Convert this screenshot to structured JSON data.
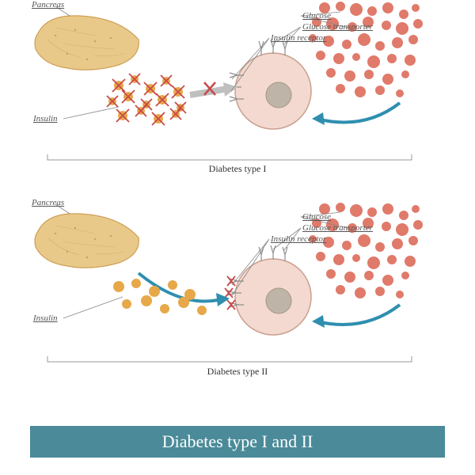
{
  "title": "Diabetes type I and II",
  "title_bar_color": "#4a8a99",
  "panels": [
    {
      "caption": "Diabetes type I",
      "labels": {
        "pancreas": "Pancreas",
        "insulin": "Insulin",
        "glucose": "Glucose",
        "glucose_transporter": "Glucose transporter",
        "insulin_receptor": "Insulin receptor"
      },
      "insulin_crossed": true,
      "receptor_crossed": false,
      "arrow_color": "#bfbfbf",
      "arrow_x": true
    },
    {
      "caption": "Diabetes type II",
      "labels": {
        "pancreas": "Pancreas",
        "insulin": "Insulin",
        "glucose": "Glucose",
        "glucose_transporter": "Glucose transporter",
        "insulin_receptor": "Insulin receptor"
      },
      "insulin_crossed": false,
      "receptor_crossed": true,
      "arrow_color": "#2f8faf",
      "arrow_x": false
    }
  ],
  "colors": {
    "pancreas_fill": "#e8c98a",
    "pancreas_stroke": "#cf9f55",
    "cell_fill": "#f3d9cf",
    "cell_stroke": "#caa08f",
    "nucleus_fill": "#bfb4a8",
    "nucleus_stroke": "#a69683",
    "glucose": "#e07a6a",
    "insulin": "#e6a848",
    "cross": "#c94a4a",
    "receptor": "#8e8e8e",
    "arrow_blue": "#2f8faf",
    "line": "#888"
  },
  "glucose_cluster": [
    [
      410,
      10,
      7
    ],
    [
      430,
      8,
      6
    ],
    [
      450,
      12,
      8
    ],
    [
      470,
      14,
      6
    ],
    [
      490,
      10,
      7
    ],
    [
      510,
      18,
      6
    ],
    [
      525,
      10,
      5
    ],
    [
      400,
      28,
      6
    ],
    [
      420,
      30,
      8
    ],
    [
      445,
      34,
      6
    ],
    [
      465,
      28,
      7
    ],
    [
      488,
      32,
      6
    ],
    [
      508,
      36,
      8
    ],
    [
      528,
      30,
      6
    ],
    [
      395,
      48,
      5
    ],
    [
      415,
      52,
      7
    ],
    [
      438,
      56,
      6
    ],
    [
      460,
      50,
      8
    ],
    [
      480,
      58,
      6
    ],
    [
      502,
      54,
      7
    ],
    [
      522,
      50,
      6
    ],
    [
      405,
      70,
      6
    ],
    [
      428,
      74,
      7
    ],
    [
      450,
      72,
      5
    ],
    [
      472,
      78,
      8
    ],
    [
      495,
      74,
      6
    ],
    [
      518,
      76,
      7
    ],
    [
      418,
      92,
      6
    ],
    [
      442,
      96,
      7
    ],
    [
      466,
      94,
      6
    ],
    [
      490,
      100,
      7
    ],
    [
      512,
      94,
      5
    ],
    [
      430,
      112,
      6
    ],
    [
      455,
      116,
      7
    ],
    [
      480,
      114,
      6
    ],
    [
      505,
      118,
      5
    ]
  ],
  "insulin_cluster": [
    [
      150,
      108,
      6
    ],
    [
      170,
      100,
      5
    ],
    [
      190,
      112,
      6
    ],
    [
      210,
      102,
      5
    ],
    [
      225,
      116,
      6
    ],
    [
      142,
      128,
      5
    ],
    [
      162,
      122,
      6
    ],
    [
      185,
      132,
      5
    ],
    [
      205,
      126,
      6
    ],
    [
      228,
      136,
      5
    ],
    [
      155,
      146,
      6
    ],
    [
      178,
      140,
      5
    ],
    [
      200,
      150,
      6
    ],
    [
      222,
      144,
      5
    ]
  ],
  "insulin_cluster2": [
    [
      150,
      112,
      7
    ],
    [
      172,
      108,
      6
    ],
    [
      195,
      118,
      7
    ],
    [
      218,
      110,
      6
    ],
    [
      240,
      122,
      7
    ],
    [
      160,
      134,
      6
    ],
    [
      185,
      130,
      7
    ],
    [
      208,
      140,
      6
    ],
    [
      232,
      132,
      7
    ],
    [
      255,
      142,
      6
    ]
  ]
}
